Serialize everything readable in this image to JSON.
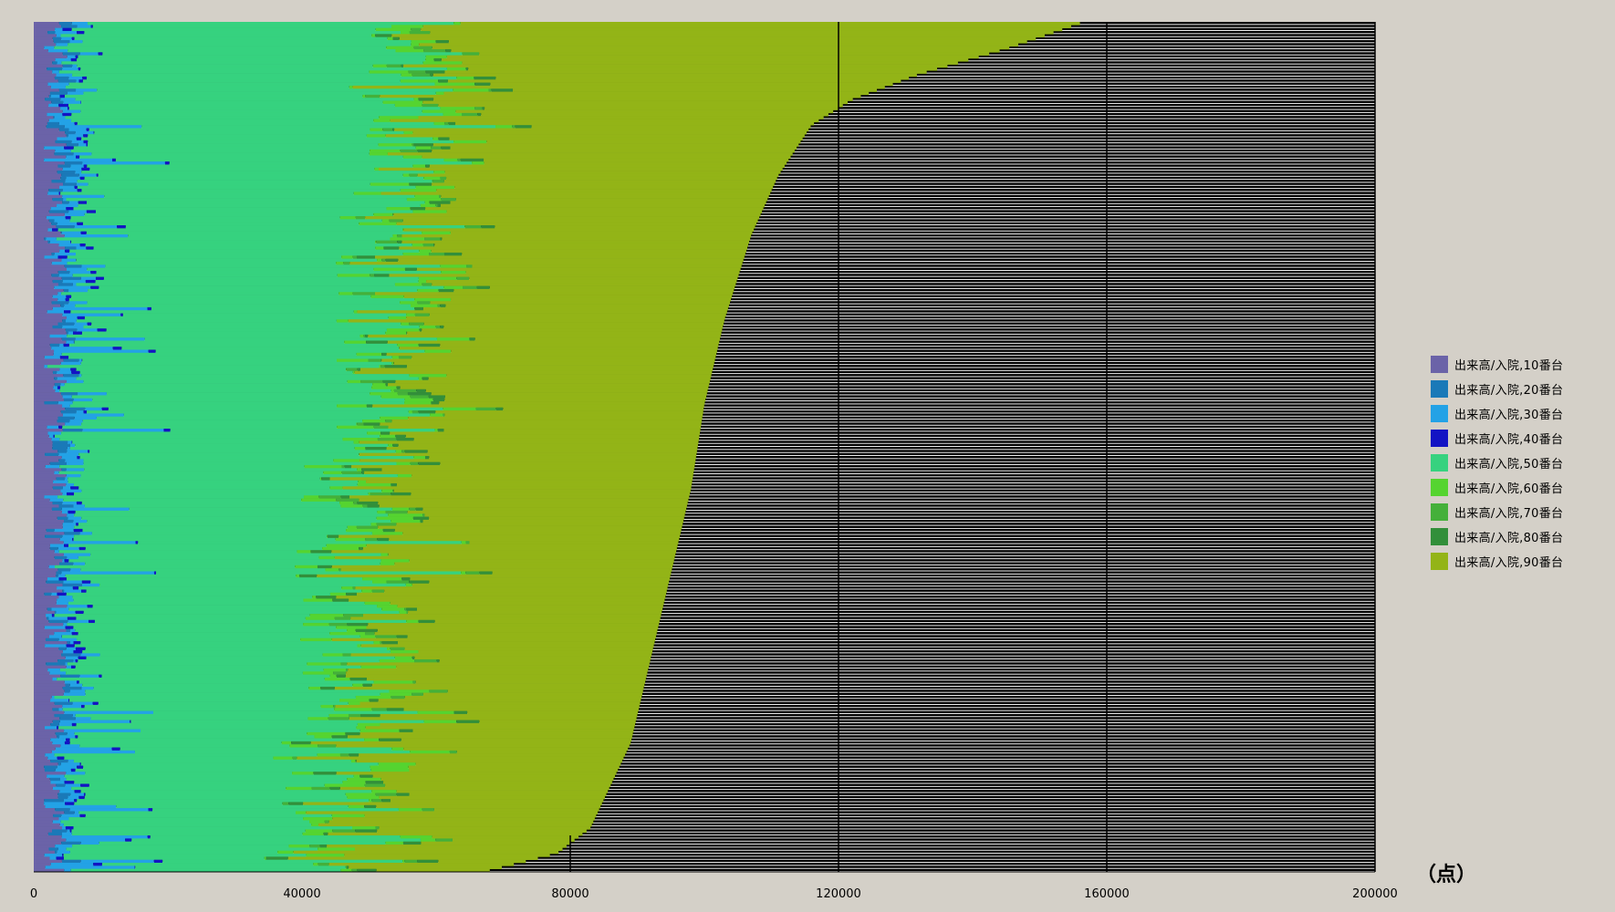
{
  "chart_data": {
    "type": "bar",
    "orientation": "horizontal",
    "stacked": true,
    "xlim": [
      0,
      200000
    ],
    "x_ticks": [
      0,
      40000,
      80000,
      120000,
      160000,
      200000
    ],
    "x_tick_labels": [
      "0",
      "40000",
      "80000",
      "120000",
      "160000",
      "200000"
    ],
    "unit_label": "（点）",
    "legend_position": "right",
    "grid": "vertical lines at 80000 (partial), 120000, 160000",
    "background_color": "#d4d0c8",
    "plot_background_color": "#ffffff",
    "bar_remainder_color": "#000000",
    "row_count": 280,
    "row_order": "sorted ascending by stacked total, top row largest",
    "series": [
      {
        "name": "出来高/入院,10番台",
        "color": "#6b63a8",
        "approx_mean_width": 3500,
        "approx_range": [
          1500,
          5000
        ]
      },
      {
        "name": "出来高/入院,20番台",
        "color": "#1a79b8",
        "approx_mean_width": 500,
        "approx_range": [
          0,
          3000
        ]
      },
      {
        "name": "出来高/入院,30番台",
        "color": "#23a2e6",
        "approx_mean_width": 1500,
        "approx_range": [
          300,
          15000
        ]
      },
      {
        "name": "出来高/入院,40番台",
        "color": "#1313c4",
        "approx_mean_width": 200,
        "approx_range": [
          0,
          1500
        ]
      },
      {
        "name": "出来高/入院,50番台",
        "color": "#36d27f",
        "approx_mean_width": 52000,
        "approx_range": [
          28000,
          72000
        ]
      },
      {
        "name": "出来高/入院,60番台",
        "color": "#55d430",
        "approx_mean_width": 2500,
        "approx_range": [
          0,
          8000
        ]
      },
      {
        "name": "出来高/入院,70番台",
        "color": "#44b03a",
        "approx_mean_width": 800,
        "approx_range": [
          0,
          4000
        ]
      },
      {
        "name": "出来高/入院,80番台",
        "color": "#328f3a",
        "approx_mean_width": 800,
        "approx_range": [
          0,
          4000
        ]
      },
      {
        "name": "出来高/入院,90番台",
        "color": "#93b417",
        "approx_mean_width": 36000,
        "approx_range": [
          14000,
          75000
        ]
      }
    ],
    "row_totals": {
      "min": 68000,
      "max": 156000,
      "approx_percentiles": [
        {
          "fraction_from_bottom": 0.0,
          "total": 68000
        },
        {
          "fraction_from_bottom": 0.02,
          "total": 78000
        },
        {
          "fraction_from_bottom": 0.05,
          "total": 83000
        },
        {
          "fraction_from_bottom": 0.1,
          "total": 86000
        },
        {
          "fraction_from_bottom": 0.15,
          "total": 89000
        },
        {
          "fraction_from_bottom": 0.25,
          "total": 92000
        },
        {
          "fraction_from_bottom": 0.35,
          "total": 95000
        },
        {
          "fraction_from_bottom": 0.45,
          "total": 98000
        },
        {
          "fraction_from_bottom": 0.55,
          "total": 100000
        },
        {
          "fraction_from_bottom": 0.65,
          "total": 103000
        },
        {
          "fraction_from_bottom": 0.75,
          "total": 107000
        },
        {
          "fraction_from_bottom": 0.82,
          "total": 111000
        },
        {
          "fraction_from_bottom": 0.88,
          "total": 116000
        },
        {
          "fraction_from_bottom": 0.91,
          "total": 122000
        },
        {
          "fraction_from_bottom": 0.94,
          "total": 132000
        },
        {
          "fraction_from_bottom": 0.97,
          "total": 145000
        },
        {
          "fraction_from_bottom": 1.0,
          "total": 156000
        }
      ]
    }
  }
}
